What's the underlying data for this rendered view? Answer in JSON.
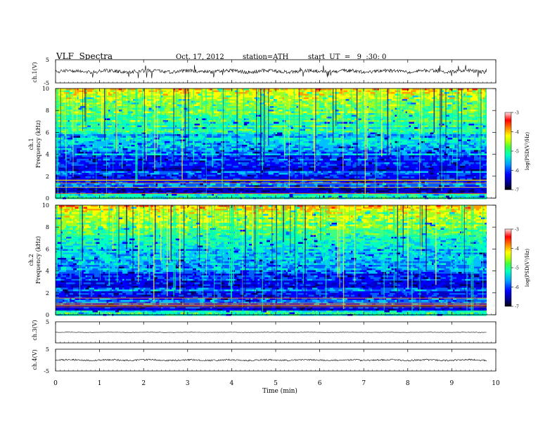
{
  "header": {
    "title": "VLF  Spectra",
    "date": "Oct. 17, 2012",
    "station": "station=ATH",
    "start": "start  UT  =   9  :30: 0"
  },
  "chart_data": [
    {
      "type": "line",
      "ylabel": "ch.1(V)",
      "ylim": [
        -5,
        5
      ],
      "ytick_labels": [
        "5",
        "-5"
      ],
      "description_values": "noisy waveform centered near 0 V, amplitude about ±1 V with spikes"
    },
    {
      "type": "heatmap",
      "ylabel": "ch.1\nFrequency  (kHz)",
      "ylabel_lines": [
        "ch.1",
        "Frequency  (kHz)"
      ],
      "ylim": [
        0,
        10
      ],
      "ytick_labels": [
        "0",
        "2",
        "4",
        "6",
        "8",
        "10"
      ],
      "colorbar": {
        "label": "log(PSD(V²/Hz)",
        "range": [
          -7,
          -3
        ],
        "tick_labels": [
          "-3",
          "-4",
          "-5",
          "-6",
          "-7"
        ]
      }
    },
    {
      "type": "heatmap",
      "ylabel_lines": [
        "ch.2",
        "Frequency  (kHz)"
      ],
      "ylim": [
        0,
        10
      ],
      "ytick_labels": [
        "0",
        "2",
        "4",
        "6",
        "8",
        "10"
      ],
      "colorbar": {
        "label": "log(PSD(V²/Hz)",
        "range": [
          -7,
          -3
        ],
        "tick_labels": [
          "-3",
          "-4",
          "-5",
          "-6",
          "-7"
        ]
      }
    },
    {
      "type": "line",
      "ylabel": "ch.3(V)",
      "ylim": [
        -5,
        5
      ],
      "ytick_labels": [
        "5"
      ]
    },
    {
      "type": "line",
      "ylabel": "ch.4(V)",
      "ylim": [
        -5,
        5
      ],
      "ytick_labels": [
        "5",
        "-5"
      ]
    }
  ],
  "xaxis": {
    "label": "Time  (min)",
    "range": [
      0,
      10
    ],
    "tick_labels": [
      "0",
      "1",
      "2",
      "3",
      "4",
      "5",
      "6",
      "7",
      "8",
      "9",
      "10"
    ]
  },
  "colors": {
    "colormap": [
      "#000080",
      "#0000ff",
      "#00a0ff",
      "#00ffc0",
      "#80ff00",
      "#ffff00",
      "#ff8000",
      "#ff0000",
      "#ffc0c0"
    ]
  }
}
